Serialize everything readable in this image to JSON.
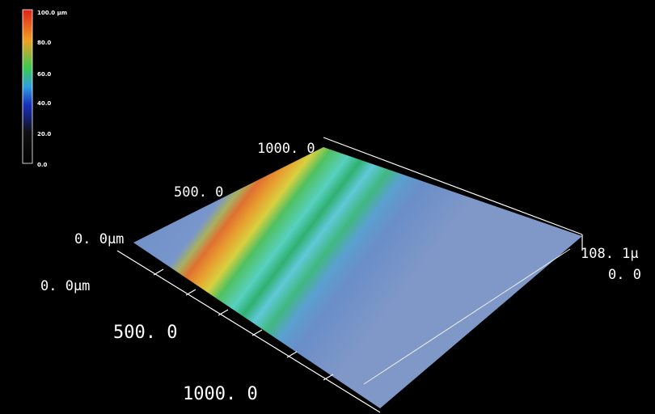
{
  "colorbar": {
    "labels": [
      "100.0 µm",
      "80.0",
      "60.0",
      "40.0",
      "20.0",
      "0.0"
    ]
  },
  "axes": {
    "back": [
      "1000. 0",
      "500. 0",
      "0. 0µm"
    ],
    "front": [
      "0. 0µm",
      "500. 0",
      "1000. 0"
    ],
    "height": [
      "108. 1µ",
      "0. 0"
    ]
  }
}
